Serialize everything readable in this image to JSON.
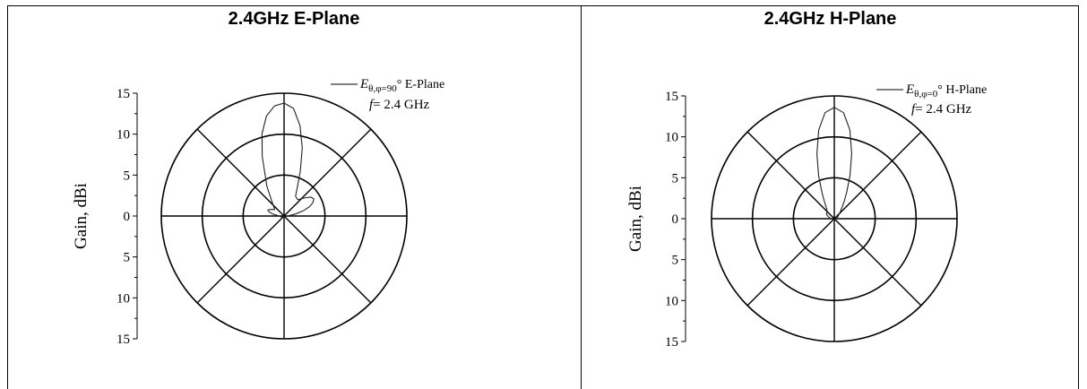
{
  "chart_data": [
    {
      "type": "polar",
      "title": "2.4GHz E-Plane",
      "ylabel": "Gain, dBi",
      "radial_range": [
        0,
        15
      ],
      "radial_ticks_upper": [
        "15",
        "10",
        "5",
        "0"
      ],
      "radial_ticks_lower": [
        "5",
        "10",
        "15"
      ],
      "radial_rings": [
        5,
        10,
        15
      ],
      "grid": true,
      "legend_position": "top-right",
      "legend": {
        "symbol": "E",
        "subscript": "θ,φ=90",
        "suffix": "° E-Plane",
        "freq_label": "f",
        "freq_value": "= 2.4 GHz"
      },
      "series": [
        {
          "angle_deg": [
            0,
            5,
            10,
            15,
            20,
            25,
            30,
            40,
            50,
            55,
            60,
            65,
            70,
            75,
            80,
            90,
            120,
            180,
            240,
            270,
            280,
            285,
            290,
            295,
            300,
            305,
            310,
            320,
            330,
            340,
            345,
            350,
            355
          ],
          "r": [
            13.8,
            13.2,
            11.2,
            8.6,
            5.8,
            3.8,
            2.8,
            2.6,
            3.5,
            4.0,
            4.2,
            3.9,
            3.3,
            2.4,
            1.4,
            0.4,
            0.2,
            0.1,
            0.3,
            0.6,
            1.4,
            1.9,
            2.1,
            1.9,
            1.6,
            1.4,
            1.6,
            2.3,
            4.2,
            7.8,
            10.4,
            12.4,
            13.5
          ]
        }
      ]
    },
    {
      "type": "polar",
      "title": "2.4GHz H-Plane",
      "ylabel": "Gain, dBi",
      "radial_range": [
        0,
        15
      ],
      "radial_ticks_upper": [
        "15",
        "10",
        "5",
        "0"
      ],
      "radial_ticks_lower": [
        "5",
        "10",
        "15"
      ],
      "radial_rings": [
        5,
        10,
        15
      ],
      "grid": true,
      "legend_position": "top-right",
      "legend": {
        "symbol": "E",
        "subscript": "θ,φ=0",
        "suffix": "° H-Plane",
        "freq_label": "f",
        "freq_value": "= 2.4 GHz"
      },
      "series": [
        {
          "angle_deg": [
            0,
            5,
            10,
            15,
            20,
            25,
            30,
            40,
            60,
            90,
            180,
            270,
            290,
            300,
            310,
            320,
            330,
            335,
            340,
            345,
            350,
            355
          ],
          "r": [
            13.6,
            13.0,
            11.0,
            8.2,
            5.6,
            3.6,
            2.4,
            1.2,
            0.5,
            0.3,
            0.1,
            0.4,
            0.8,
            1.1,
            1.2,
            1.4,
            2.4,
            3.6,
            5.6,
            8.2,
            11.0,
            13.0
          ]
        }
      ]
    }
  ]
}
